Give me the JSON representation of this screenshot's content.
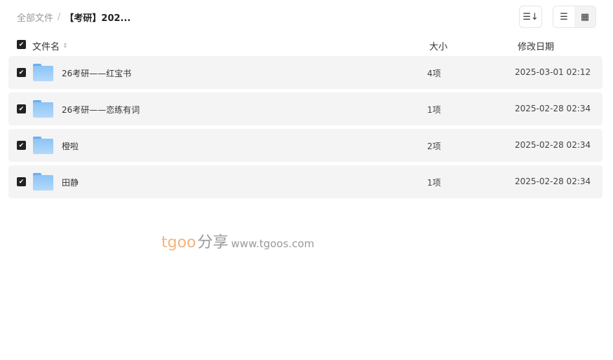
{
  "breadcrumb": {
    "root": "全部文件",
    "separator": "/",
    "current": "【考研】202..."
  },
  "toolbar": {
    "sort_icon": "sort-icon",
    "list_view_icon": "list-icon",
    "grid_view_icon": "grid-icon"
  },
  "header": {
    "name": "文件名",
    "size": "大小",
    "date": "修改日期"
  },
  "files": [
    {
      "name": "26考研——红宝书",
      "size": "4项",
      "date": "2025-03-01 02:12"
    },
    {
      "name": "26考研——恋练有词",
      "size": "1项",
      "date": "2025-02-28 02:34"
    },
    {
      "name": "橙啦",
      "size": "2项",
      "date": "2025-02-28 02:34"
    },
    {
      "name": "田静",
      "size": "1项",
      "date": "2025-02-28 02:34"
    }
  ],
  "watermark": {
    "brand": "tgoo",
    "cn": "分享",
    "url": "www.tgoos.com"
  },
  "colors": {
    "folder": "#8cc4f6",
    "row_bg": "#f4f4f4",
    "checkbox": "#222222"
  }
}
